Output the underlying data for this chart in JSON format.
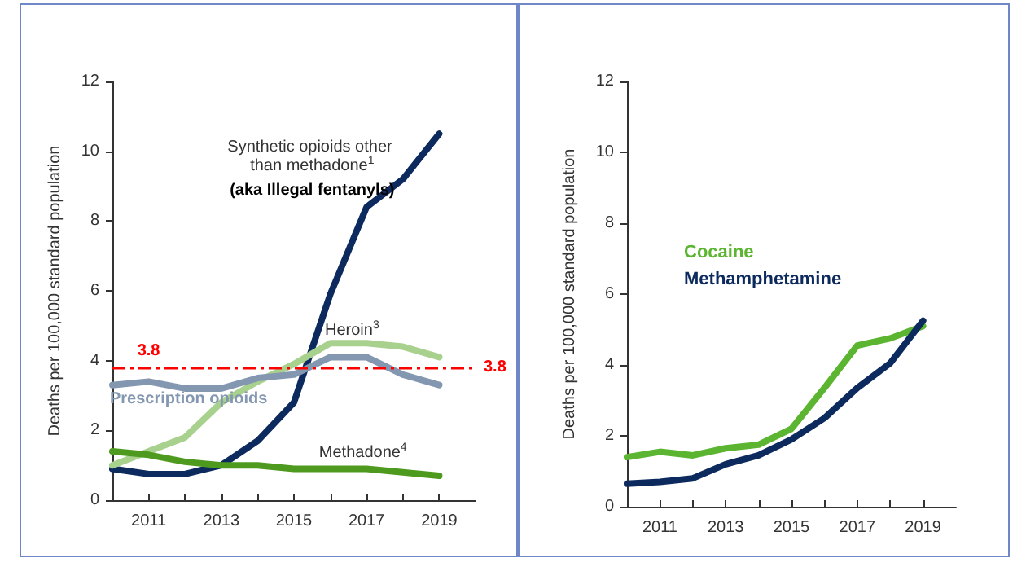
{
  "chart_data": [
    {
      "type": "line",
      "ylabel": "Deaths per 100,000 standard population",
      "x": [
        2010,
        2011,
        2012,
        2013,
        2014,
        2015,
        2016,
        2017,
        2018,
        2019
      ],
      "xlim": [
        2010,
        2020
      ],
      "xticks": [
        2011,
        {
          "value": 2012,
          "label": null
        },
        2013,
        {
          "value": 2014,
          "label": null
        },
        2015,
        {
          "value": 2016,
          "label": null
        },
        2017,
        {
          "value": 2018,
          "label": null
        },
        2019
      ],
      "ylim": [
        0,
        12
      ],
      "yticks": [
        0,
        2,
        4,
        6,
        8,
        10,
        12
      ],
      "grid": false,
      "marker": "none",
      "line_style": "solid",
      "legend": false,
      "series": [
        {
          "name": "Synthetic opioids other than methadone$^{1}$",
          "color": "#0d2a5e",
          "values": [
            0.9,
            0.75,
            0.75,
            1.0,
            1.7,
            2.8,
            5.9,
            8.4,
            9.2,
            10.5
          ]
        },
        {
          "name": "Heroin$^{3}$",
          "color": "#a9d18e",
          "values": [
            1.0,
            1.4,
            1.8,
            2.8,
            3.4,
            3.9,
            4.5,
            4.5,
            4.4,
            4.1
          ]
        },
        {
          "name": "Prescription opioids",
          "color": "#8497b0",
          "values": [
            3.3,
            3.4,
            3.2,
            3.2,
            3.5,
            3.6,
            4.1,
            4.1,
            3.6,
            3.3
          ]
        },
        {
          "name": "Methadone$^{4}$",
          "color": "#4e9a1e",
          "values": [
            1.4,
            1.3,
            1.1,
            1.0,
            1.0,
            0.9,
            0.9,
            0.9,
            0.8,
            0.7
          ]
        }
      ],
      "ref_lines": [
        {
          "axis": "y",
          "value": 3.8,
          "label": "3.8",
          "color": "#ff0000",
          "line_style": "dashed"
        }
      ],
      "annotations": [
        "(aka Illegal fentanyls)",
        "3.8"
      ]
    },
    {
      "type": "line",
      "ylabel": "Deaths per 100,000 standard population",
      "x": [
        2010,
        2011,
        2012,
        2013,
        2014,
        2015,
        2016,
        2017,
        2018,
        2019
      ],
      "xlim": [
        2010,
        2020
      ],
      "xticks": [
        2011,
        {
          "value": 2012,
          "label": null
        },
        2013,
        {
          "value": 2014,
          "label": null
        },
        2015,
        {
          "value": 2016,
          "label": null
        },
        2017,
        {
          "value": 2018,
          "label": null
        },
        2019
      ],
      "ylim": [
        0,
        12
      ],
      "yticks": [
        0,
        2,
        4,
        6,
        8,
        10,
        12
      ],
      "grid": false,
      "marker": "none",
      "line_style": "solid",
      "legend": "top left",
      "series": [
        {
          "name": "Cocaine",
          "color": "#5cb531",
          "values": [
            1.4,
            1.55,
            1.45,
            1.65,
            1.75,
            2.2,
            3.35,
            4.55,
            4.75,
            5.1
          ]
        },
        {
          "name": "Methamphetamine",
          "color": "#0d2a5e",
          "values": [
            0.65,
            0.7,
            0.8,
            1.2,
            1.45,
            1.9,
            2.5,
            3.35,
            4.05,
            5.25
          ]
        }
      ]
    }
  ]
}
